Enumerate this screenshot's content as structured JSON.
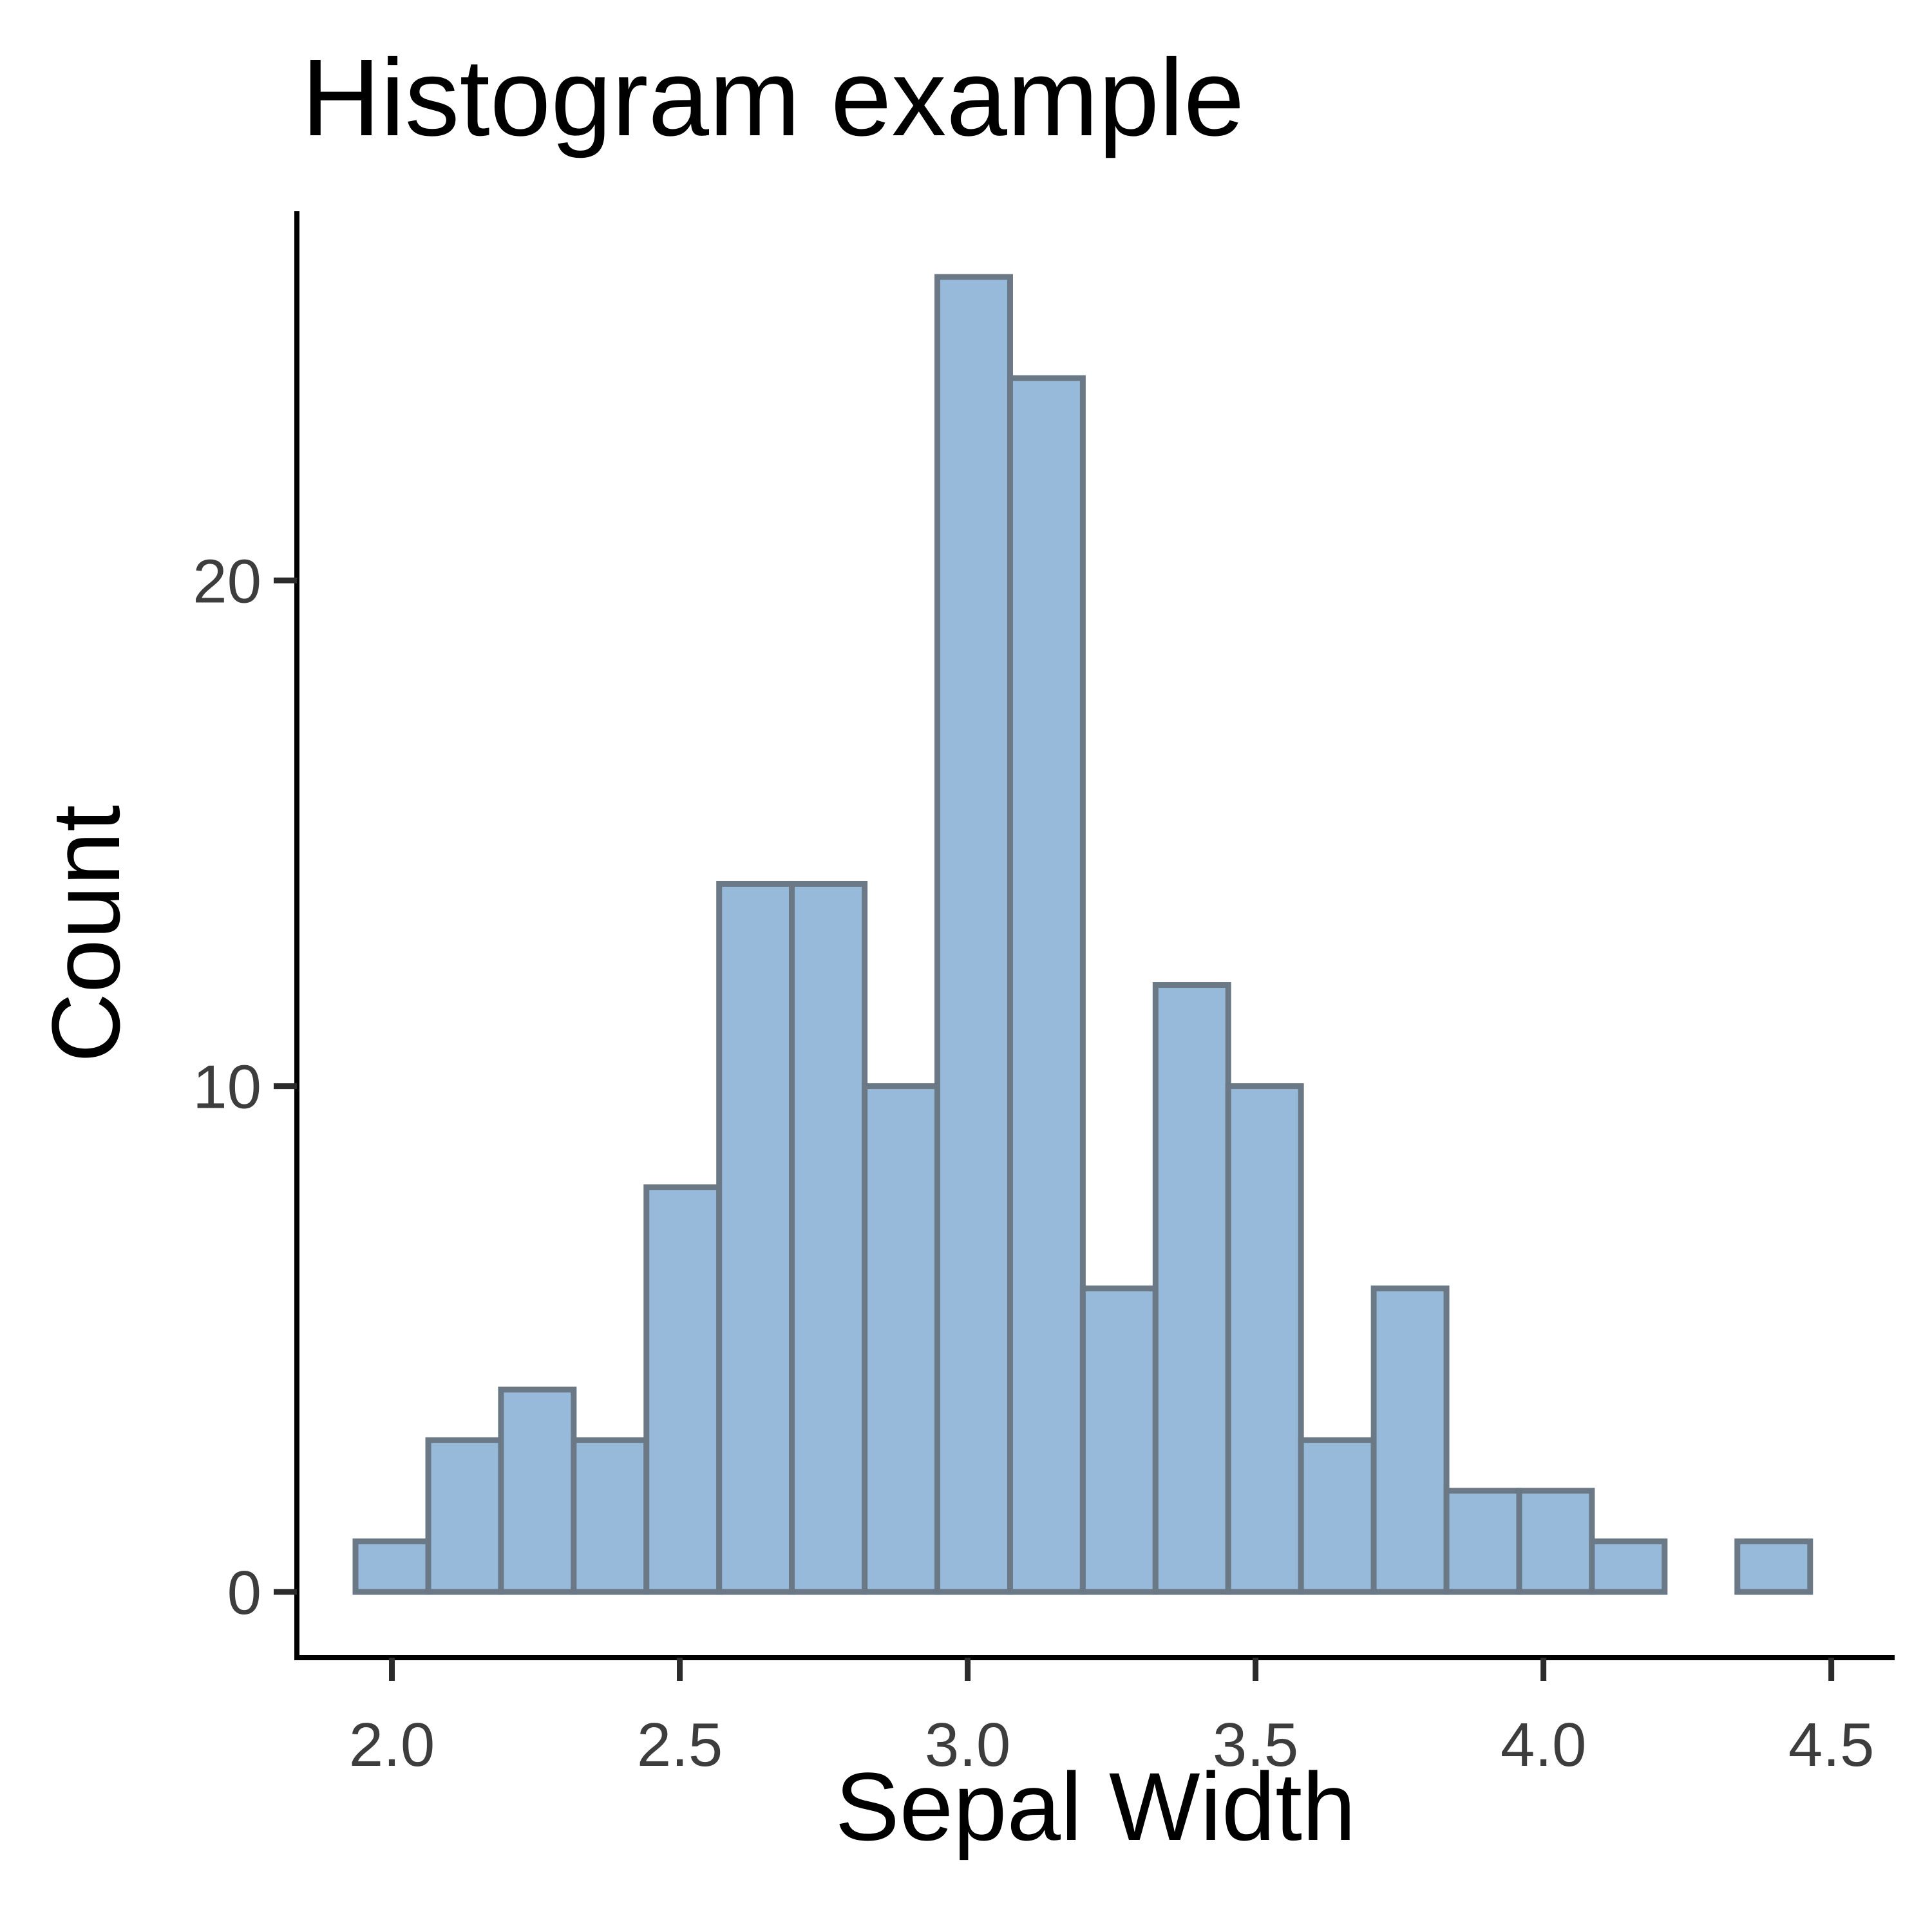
{
  "chart_data": {
    "type": "bar",
    "title": "Histogram example",
    "xlabel": "Sepal Width",
    "ylabel": "Count",
    "bin_width": 0.12631579,
    "bins": [
      {
        "x0": 1.9368,
        "x1": 2.0632,
        "count": 1
      },
      {
        "x0": 2.0632,
        "x1": 2.1895,
        "count": 3
      },
      {
        "x0": 2.1895,
        "x1": 2.3158,
        "count": 4
      },
      {
        "x0": 2.3158,
        "x1": 2.4421,
        "count": 3
      },
      {
        "x0": 2.4421,
        "x1": 2.5684,
        "count": 8
      },
      {
        "x0": 2.5684,
        "x1": 2.6947,
        "count": 14
      },
      {
        "x0": 2.6947,
        "x1": 2.8211,
        "count": 14
      },
      {
        "x0": 2.8211,
        "x1": 2.9474,
        "count": 10
      },
      {
        "x0": 2.9474,
        "x1": 3.0737,
        "count": 26
      },
      {
        "x0": 3.0737,
        "x1": 3.2,
        "count": 24
      },
      {
        "x0": 3.2,
        "x1": 3.3263,
        "count": 6
      },
      {
        "x0": 3.3263,
        "x1": 3.4526,
        "count": 12
      },
      {
        "x0": 3.4526,
        "x1": 3.5789,
        "count": 10
      },
      {
        "x0": 3.5789,
        "x1": 3.7053,
        "count": 3
      },
      {
        "x0": 3.7053,
        "x1": 3.8316,
        "count": 6
      },
      {
        "x0": 3.8316,
        "x1": 3.9579,
        "count": 2
      },
      {
        "x0": 3.9579,
        "x1": 4.0842,
        "count": 2
      },
      {
        "x0": 4.0842,
        "x1": 4.2105,
        "count": 1
      },
      {
        "x0": 4.2105,
        "x1": 4.3368,
        "count": 0
      },
      {
        "x0": 4.3368,
        "x1": 4.4632,
        "count": 1
      }
    ],
    "xlim": [
      1.835,
      4.61
    ],
    "ylim": [
      -1.3,
      27.3
    ],
    "x_ticks": [
      2.0,
      2.5,
      3.0,
      3.5,
      4.0,
      4.5
    ],
    "x_tick_labels": [
      "2.0",
      "2.5",
      "3.0",
      "3.5",
      "4.0",
      "4.5"
    ],
    "y_ticks": [
      0,
      10,
      20
    ],
    "y_tick_labels": [
      "0",
      "10",
      "20"
    ],
    "grid": false,
    "legend": "none",
    "bar_fill": "#97bada",
    "bar_stroke": "#6a7985"
  }
}
